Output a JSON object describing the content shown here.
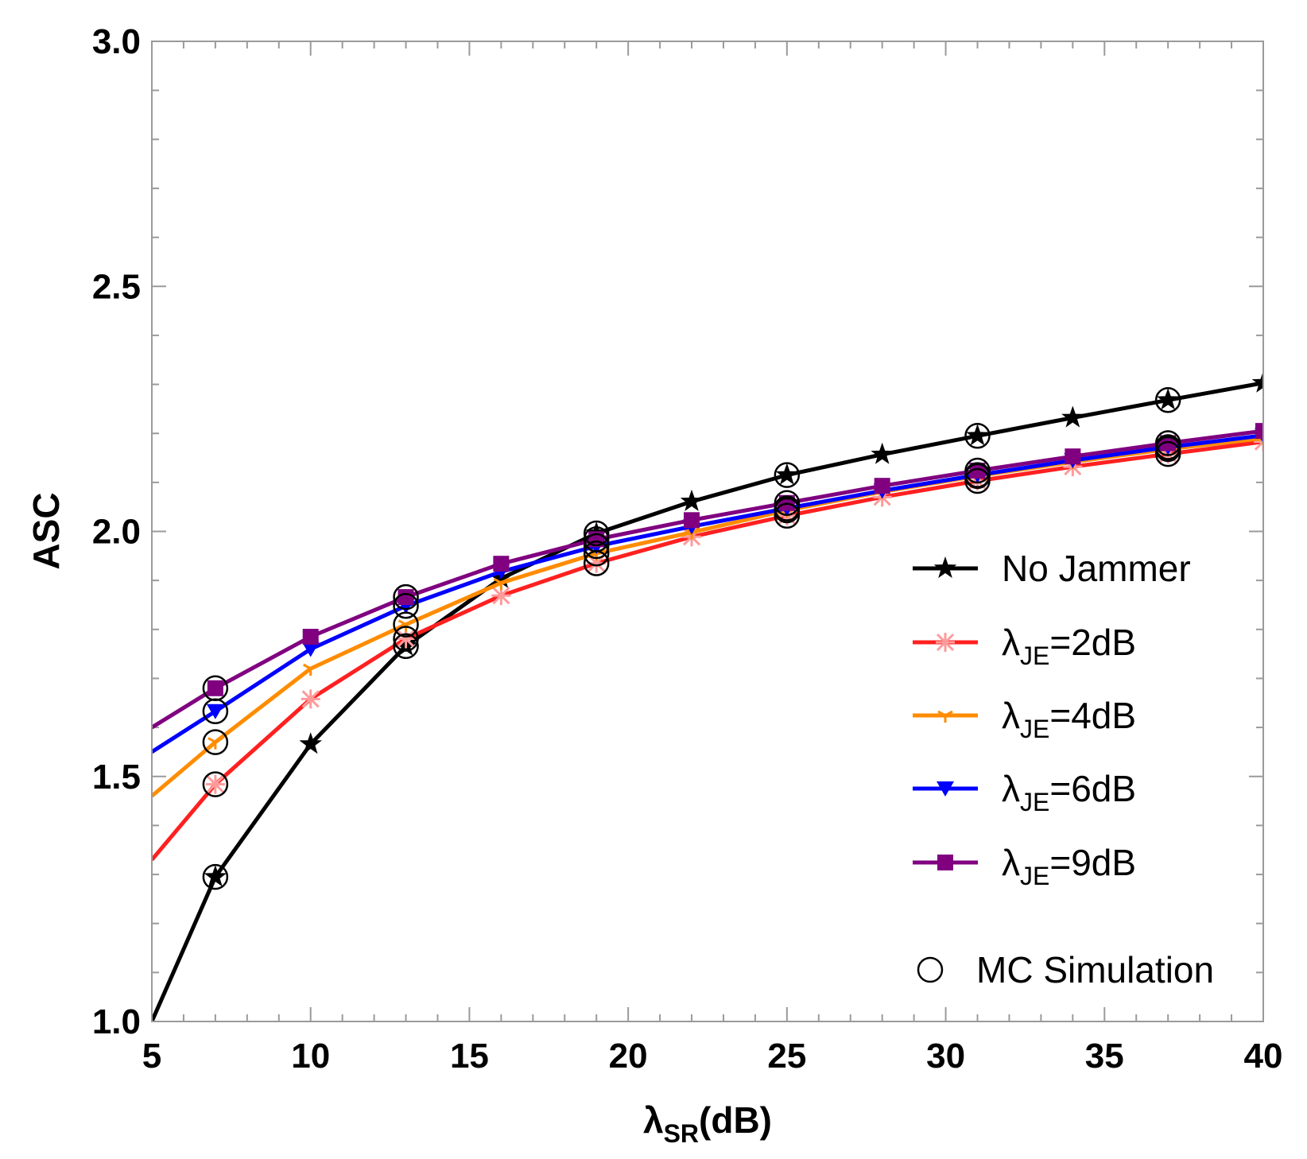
{
  "chart_data": {
    "type": "line",
    "title": "",
    "xlabel": {
      "symbol": "λ",
      "subscript": "SR",
      "suffix": "(dB)"
    },
    "ylabel": "ASC",
    "xlim": [
      5,
      40
    ],
    "ylim": [
      1.0,
      3.0
    ],
    "xticks": [
      5,
      10,
      15,
      20,
      25,
      30,
      35,
      40
    ],
    "yticks": [
      1.0,
      1.5,
      2.0,
      2.5,
      3.0
    ],
    "ytick_labels": [
      "1.0",
      "1.5",
      "2.0",
      "2.5",
      "3.0"
    ],
    "grid": false,
    "legend_position": "bottom-right",
    "series": [
      {
        "name": "No Jammer",
        "label_main": "No Jammer",
        "label_sub": "",
        "label_suffix": "",
        "color": "#000000",
        "marker": "star",
        "x": [
          5,
          7,
          10,
          13,
          16,
          19,
          22,
          25,
          28,
          31,
          34,
          37,
          40
        ],
        "values": [
          1.0,
          1.295,
          1.566,
          1.766,
          1.904,
          1.996,
          2.061,
          2.115,
          2.157,
          2.195,
          2.232,
          2.268,
          2.303
        ]
      },
      {
        "name": "λJE=2dB",
        "label_main": "λ",
        "label_sub": "JE",
        "label_suffix": "=2dB",
        "color": "#ff2020",
        "marker": "cross",
        "x": [
          5,
          7,
          10,
          13,
          16,
          19,
          22,
          25,
          28,
          31,
          34,
          37,
          40
        ],
        "values": [
          1.33,
          1.484,
          1.658,
          1.781,
          1.869,
          1.935,
          1.989,
          2.032,
          2.07,
          2.103,
          2.132,
          2.158,
          2.183
        ]
      },
      {
        "name": "λJE=4dB",
        "label_main": "λ",
        "label_sub": "JE",
        "label_suffix": "=4dB",
        "color": "#ff8c00",
        "marker": "tri",
        "x": [
          5,
          7,
          10,
          13,
          16,
          19,
          22,
          25,
          28,
          31,
          34,
          37,
          40
        ],
        "values": [
          1.46,
          1.57,
          1.72,
          1.81,
          1.895,
          1.955,
          1.998,
          2.043,
          2.081,
          2.113,
          2.142,
          2.168,
          2.19
        ]
      },
      {
        "name": "λJE=6dB",
        "label_main": "λ",
        "label_sub": "JE",
        "label_suffix": "=6dB",
        "color": "#0000ff",
        "marker": "triangle-down",
        "x": [
          5,
          7,
          10,
          13,
          16,
          19,
          22,
          25,
          28,
          31,
          34,
          37,
          40
        ],
        "values": [
          1.55,
          1.633,
          1.76,
          1.848,
          1.918,
          1.97,
          2.01,
          2.047,
          2.083,
          2.115,
          2.145,
          2.172,
          2.196
        ]
      },
      {
        "name": "λJE=9dB",
        "label_main": "λ",
        "label_sub": "JE",
        "label_suffix": "=9dB",
        "color": "#800080",
        "marker": "square",
        "x": [
          5,
          7,
          10,
          13,
          16,
          19,
          22,
          25,
          28,
          31,
          34,
          37,
          40
        ],
        "values": [
          1.6,
          1.68,
          1.785,
          1.866,
          1.934,
          1.984,
          2.023,
          2.058,
          2.093,
          2.124,
          2.153,
          2.18,
          2.205
        ]
      }
    ],
    "mc_simulation": {
      "name": "MC Simulation",
      "marker": "open-circle",
      "color": "#000000",
      "x": [
        7,
        13,
        19,
        25,
        31,
        37
      ]
    }
  }
}
